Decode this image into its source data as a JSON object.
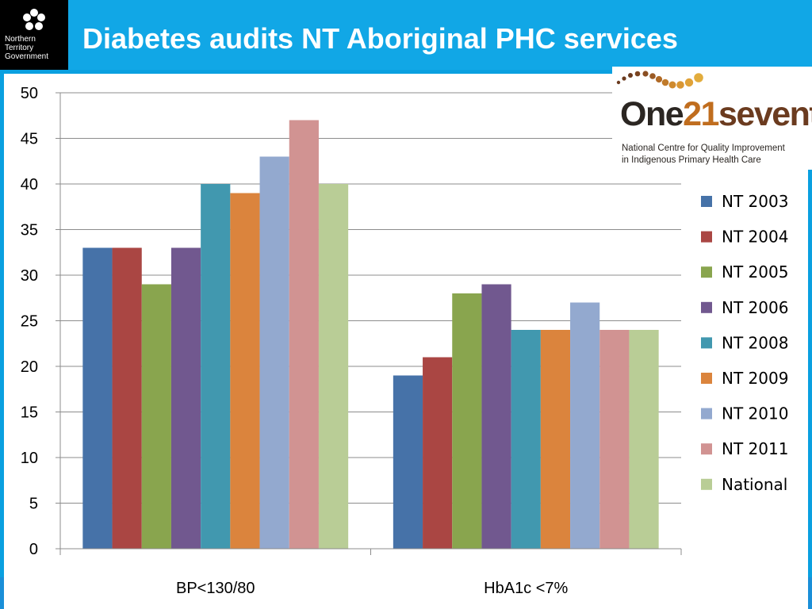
{
  "header": {
    "title": "Diabetes audits NT Aboriginal PHC services",
    "gov_logo_lines": [
      "Northern",
      "Territory",
      "Government"
    ]
  },
  "org_logo": {
    "name_parts": [
      "One",
      "21",
      "seventy"
    ],
    "subtitle_lines": [
      "National Centre for Quality Improvement",
      "in Indigenous Primary Health Care"
    ]
  },
  "colors": {
    "header_bg": "#11a7e6",
    "title_text": "#ffffff"
  },
  "chart_data": {
    "type": "bar",
    "title": "",
    "xlabel": "",
    "ylabel": "",
    "categories": [
      "BP<130/80",
      "HbA1c <7%"
    ],
    "ylim": [
      0,
      50
    ],
    "yticks": [
      0,
      5,
      10,
      15,
      20,
      25,
      30,
      35,
      40,
      45,
      50
    ],
    "grid": true,
    "legend_position": "right",
    "series": [
      {
        "name": "NT 2003",
        "color": "#4672a8",
        "values": [
          33,
          19
        ]
      },
      {
        "name": "NT 2004",
        "color": "#aa4643",
        "values": [
          33,
          21
        ]
      },
      {
        "name": "NT 2005",
        "color": "#89a54e",
        "values": [
          29,
          28
        ]
      },
      {
        "name": "NT 2006",
        "color": "#71588f",
        "values": [
          33,
          29
        ]
      },
      {
        "name": "NT 2008",
        "color": "#4198af",
        "values": [
          40,
          24
        ]
      },
      {
        "name": "NT 2009",
        "color": "#db843d",
        "values": [
          39,
          24
        ]
      },
      {
        "name": "NT 2010",
        "color": "#93a9cf",
        "values": [
          43,
          27
        ]
      },
      {
        "name": "NT 2011",
        "color": "#d19392",
        "values": [
          47,
          24
        ]
      },
      {
        "name": "National",
        "color": "#b9cd96",
        "values": [
          40,
          24
        ]
      }
    ]
  }
}
